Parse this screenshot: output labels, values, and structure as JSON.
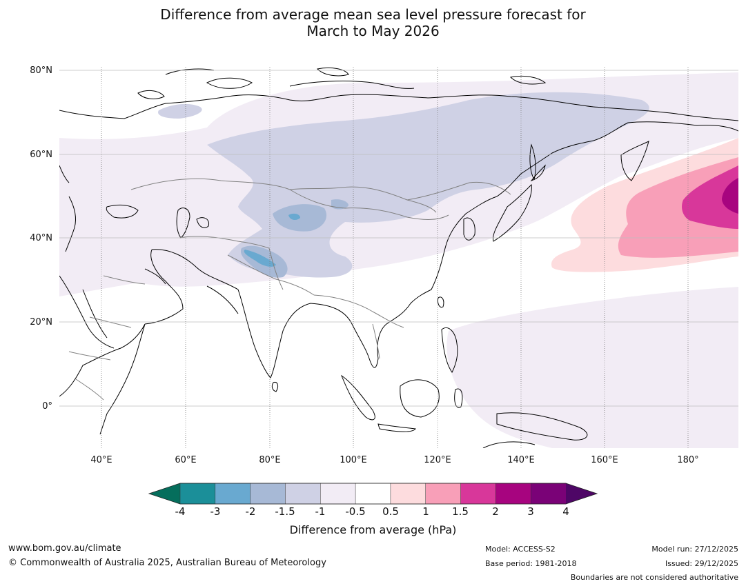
{
  "title": {
    "line1": "Difference from average mean sea level pressure forecast for",
    "line2": "March to May 2026"
  },
  "map": {
    "lat_labels": [
      "80°N",
      "60°N",
      "40°N",
      "20°N",
      "0°"
    ],
    "lon_labels": [
      "40°E",
      "60°E",
      "80°E",
      "100°E",
      "120°E",
      "140°E",
      "160°E",
      "180°"
    ],
    "lat_values": [
      80,
      60,
      40,
      20,
      0
    ],
    "lon_values": [
      40,
      60,
      80,
      100,
      120,
      140,
      160,
      180
    ],
    "extent": {
      "lon_min": 30,
      "lon_max": 191,
      "lat_min": -10,
      "lat_max": 81
    }
  },
  "colorbar": {
    "ticks": [
      "-4",
      "-3",
      "-2",
      "-1.5",
      "-1",
      "-0.5",
      "0.5",
      "1",
      "1.5",
      "2",
      "3",
      "4"
    ],
    "colors": [
      "#1b8f99",
      "#69a9d0",
      "#a7b9d6",
      "#cfd1e5",
      "#f2ecf5",
      "#ffffff",
      "#fddcde",
      "#f89fb8",
      "#d8379a",
      "#a7047f",
      "#7a0277"
    ],
    "under_color": "#056e5c",
    "over_color": "#4e0666",
    "label": "Difference from average (hPa)"
  },
  "footer": {
    "url": "www.bom.gov.au/climate",
    "copyright": "© Commonwealth of Australia 2025, Australian Bureau of Meteorology",
    "model": "Model: ACCESS-S2",
    "base_period": "Base period: 1981-2018",
    "model_run": "Model run: 27/12/2025",
    "issued": "Issued: 29/12/2025",
    "disclaimer": "Boundaries are not considered authoritative"
  }
}
